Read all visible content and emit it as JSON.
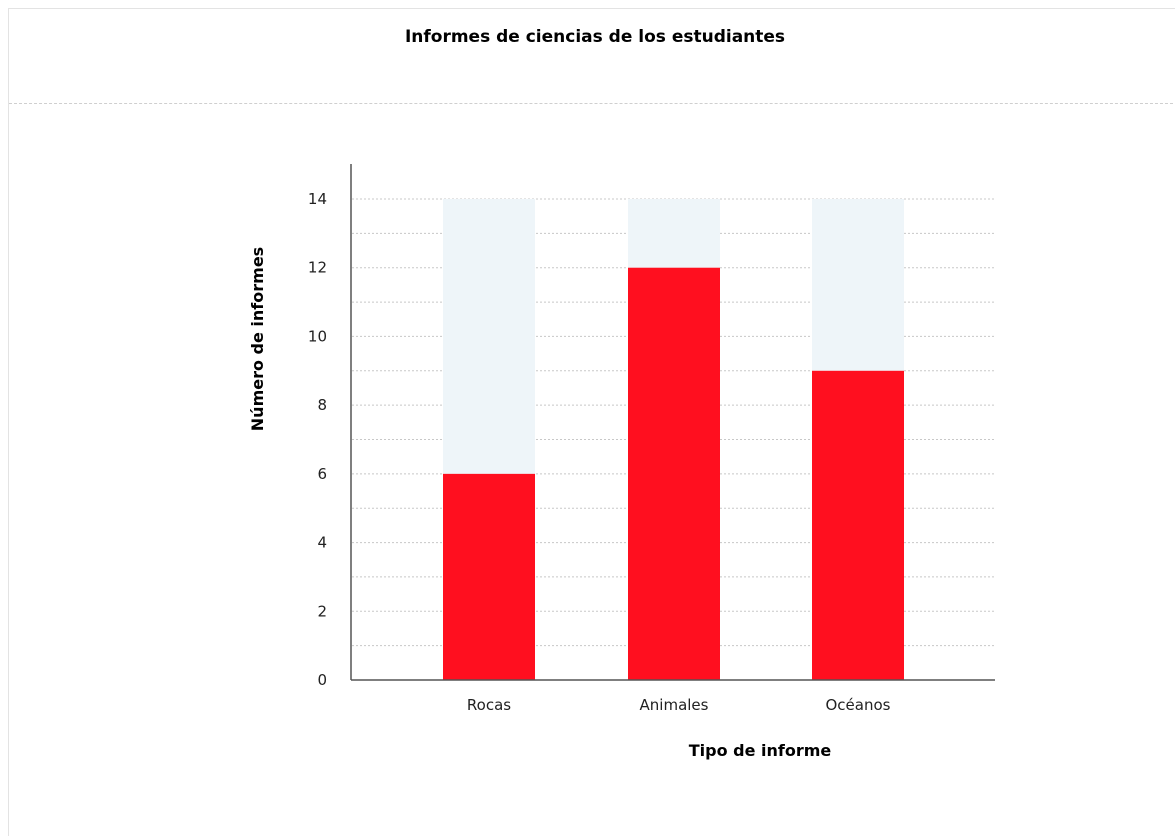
{
  "chart_data": {
    "type": "bar",
    "title": "Informes de ciencias de los estudiantes",
    "xlabel": "Tipo de informe",
    "ylabel": "Número de informes",
    "categories": [
      "Rocas",
      "Animales",
      "Océanos"
    ],
    "values": [
      6,
      12,
      9
    ],
    "ylim": [
      0,
      14
    ],
    "yticks": [
      0,
      2,
      4,
      6,
      8,
      10,
      12,
      14
    ],
    "grid": true,
    "colors": {
      "bar": "#ff0f1f",
      "bar_background": "#eef5f9",
      "grid": "#c8c8c8",
      "axis": "#555555"
    }
  }
}
